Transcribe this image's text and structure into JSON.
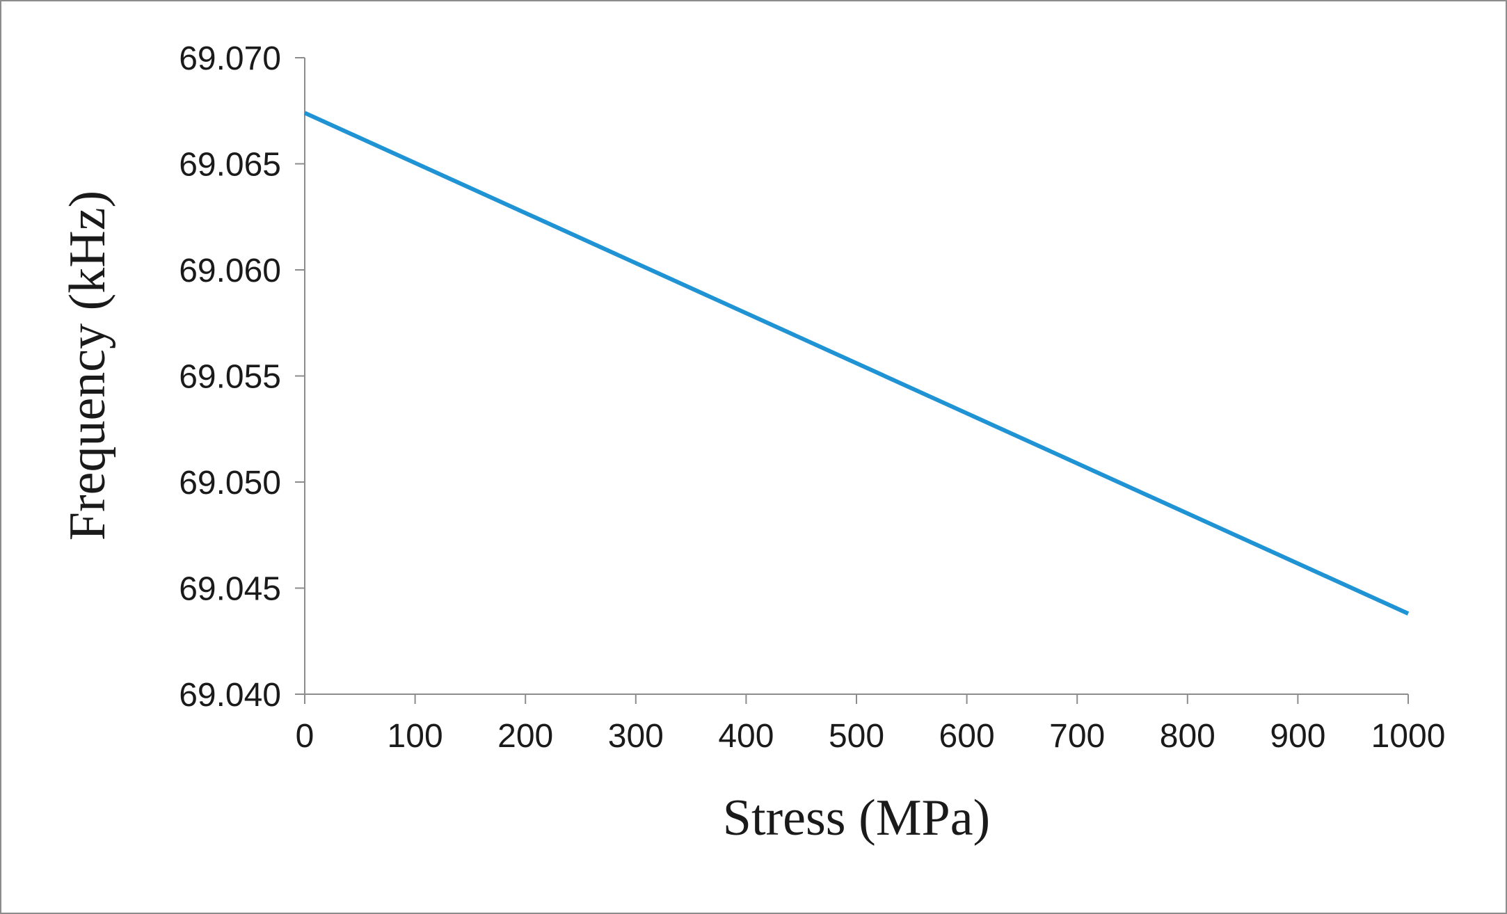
{
  "chart_data": {
    "type": "line",
    "title": "",
    "xlabel": "Stress (MPa)",
    "ylabel": "Frequency (kHz)",
    "xlim": [
      0,
      1000
    ],
    "ylim": [
      69.04,
      69.07
    ],
    "x_ticks": [
      "0",
      "100",
      "200",
      "300",
      "400",
      "500",
      "600",
      "700",
      "800",
      "900",
      "1000"
    ],
    "y_ticks": [
      "69.040",
      "69.045",
      "69.050",
      "69.055",
      "69.060",
      "69.065",
      "69.070"
    ],
    "grid": false,
    "legend": "none",
    "series": [
      {
        "name": "Frequency",
        "color": "#1f93d3",
        "x": [
          0,
          1000
        ],
        "y": [
          69.0674,
          69.0438
        ]
      }
    ]
  }
}
